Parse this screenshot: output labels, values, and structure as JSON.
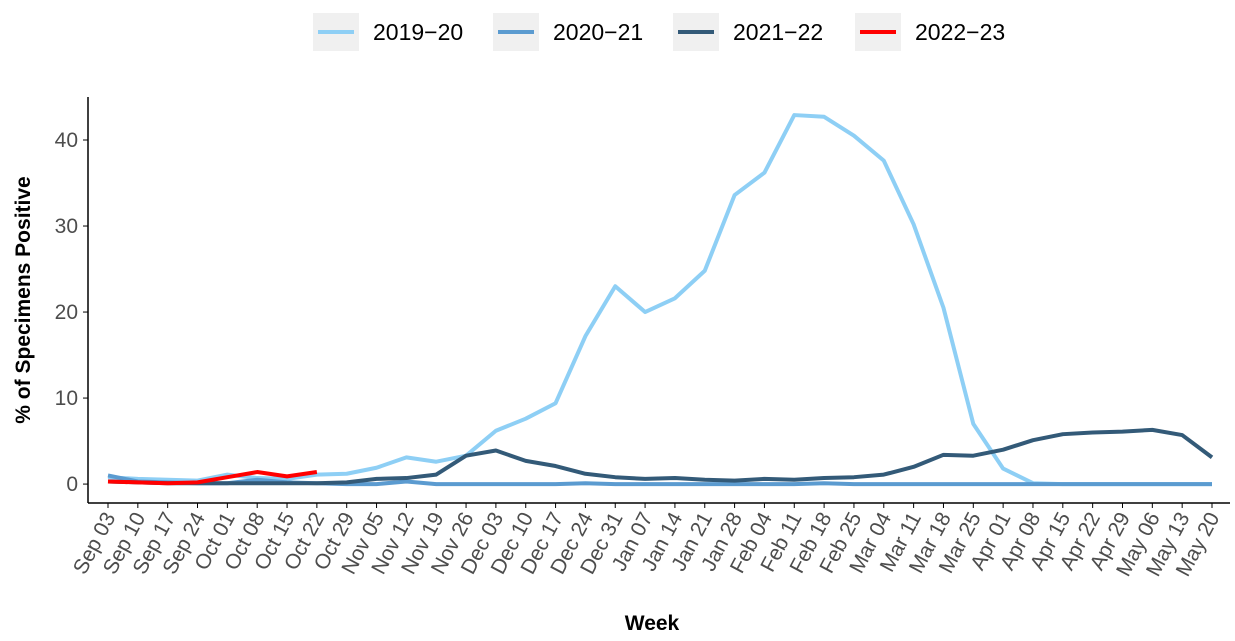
{
  "chart_data": {
    "type": "line",
    "x_label": "Week",
    "y_label": "% of Specimens Positive",
    "categories": [
      "Sep 03",
      "Sep 10",
      "Sep 17",
      "Sep 24",
      "Oct 01",
      "Oct 08",
      "Oct 15",
      "Oct 22",
      "Oct 29",
      "Nov 05",
      "Nov 12",
      "Nov 19",
      "Nov 26",
      "Dec 03",
      "Dec 10",
      "Dec 17",
      "Dec 24",
      "Dec 31",
      "Jan 07",
      "Jan 14",
      "Jan 21",
      "Jan 28",
      "Feb 04",
      "Feb 11",
      "Feb 18",
      "Feb 25",
      "Mar 04",
      "Mar 11",
      "Mar 18",
      "Mar 25",
      "Apr 01",
      "Apr 08",
      "Apr 15",
      "Apr 22",
      "Apr 29",
      "May 06",
      "May 13",
      "May 20"
    ],
    "series": [
      {
        "name": "2019−20",
        "color": "#8ecff5",
        "values": [
          0.8,
          0.6,
          0.5,
          0.4,
          1.1,
          0.7,
          0.6,
          1.1,
          1.2,
          1.9,
          3.1,
          2.6,
          3.3,
          6.2,
          7.6,
          9.4,
          17.2,
          23.0,
          20.0,
          21.6,
          24.8,
          33.6,
          36.2,
          42.9,
          42.7,
          40.5,
          37.6,
          30.2,
          20.5,
          7.0,
          1.8,
          0.1,
          0,
          0,
          0,
          0,
          0,
          0
        ]
      },
      {
        "name": "2020−21",
        "color": "#5b9bd0",
        "values": [
          1.0,
          0.3,
          0.2,
          0.1,
          0.1,
          0.5,
          0.2,
          0.1,
          0,
          0,
          0.3,
          0,
          0,
          0,
          0,
          0,
          0.1,
          0,
          0,
          0,
          0,
          0,
          0,
          0,
          0.1,
          0,
          0,
          0,
          0,
          0,
          0,
          0,
          0,
          0,
          0,
          0,
          0,
          0
        ]
      },
      {
        "name": "2021−22",
        "color": "#335a78",
        "values": [
          0.3,
          0.2,
          0.1,
          0.1,
          0.1,
          0.1,
          0.1,
          0.1,
          0.2,
          0.6,
          0.7,
          1.1,
          3.3,
          3.9,
          2.7,
          2.1,
          1.2,
          0.8,
          0.6,
          0.7,
          0.5,
          0.4,
          0.6,
          0.5,
          0.7,
          0.8,
          1.1,
          2.0,
          3.4,
          3.3,
          4.0,
          5.1,
          5.8,
          6.0,
          6.1,
          6.3,
          5.7,
          3.1
        ]
      },
      {
        "name": "2022−23",
        "color": "#ff0000",
        "values": [
          0.3,
          0.2,
          0.1,
          0.2,
          0.8,
          1.4,
          0.9,
          1.4,
          null,
          null,
          null,
          null,
          null,
          null,
          null,
          null,
          null,
          null,
          null,
          null,
          null,
          null,
          null,
          null,
          null,
          null,
          null,
          null,
          null,
          null,
          null,
          null,
          null,
          null,
          null,
          null,
          null,
          null
        ]
      }
    ],
    "ylim": [
      -2.2,
      45
    ],
    "yticks": [
      0,
      10,
      20,
      30,
      40
    ],
    "grid": false,
    "legend": "top"
  }
}
